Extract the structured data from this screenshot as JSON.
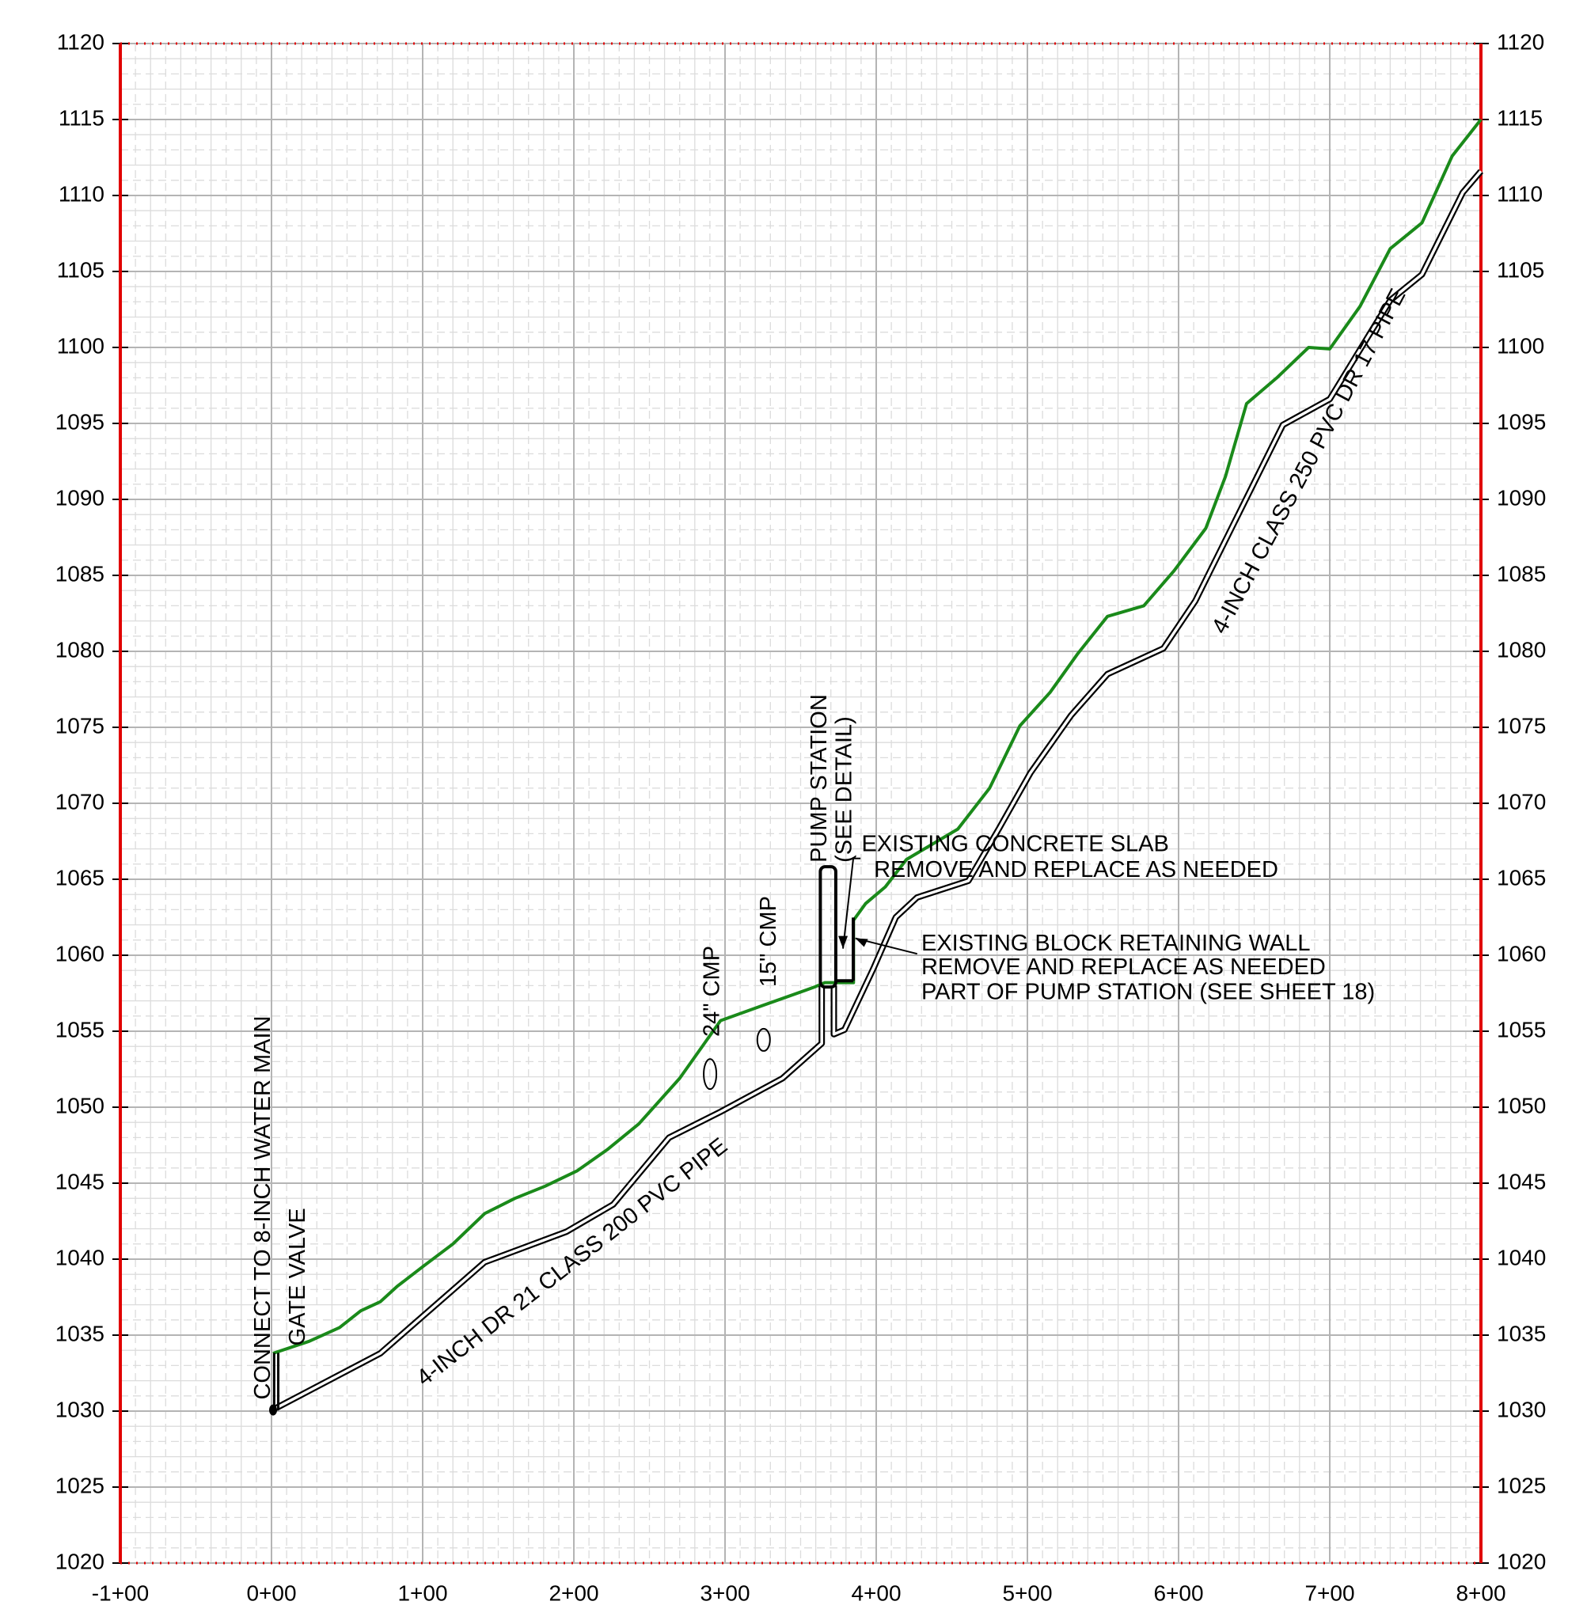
{
  "chart_data": {
    "type": "line",
    "xlim": [
      -100,
      800
    ],
    "xticks": [
      {
        "value": -100,
        "label": "-1+00"
      },
      {
        "value": 0,
        "label": "0+00"
      },
      {
        "value": 100,
        "label": "1+00"
      },
      {
        "value": 200,
        "label": "2+00"
      },
      {
        "value": 300,
        "label": "3+00"
      },
      {
        "value": 400,
        "label": "4+00"
      },
      {
        "value": 500,
        "label": "5+00"
      },
      {
        "value": 600,
        "label": "6+00"
      },
      {
        "value": 700,
        "label": "7+00"
      },
      {
        "value": 800,
        "label": "8+00"
      }
    ],
    "ylim": [
      1020,
      1120
    ],
    "yticks": [
      1020,
      1025,
      1030,
      1035,
      1040,
      1045,
      1050,
      1055,
      1060,
      1065,
      1070,
      1075,
      1080,
      1085,
      1090,
      1095,
      1100,
      1105,
      1110,
      1115,
      1120
    ],
    "grid": true,
    "axis_color": "#e00000",
    "series": [
      {
        "color": "#1a8a1a",
        "x": [
          1,
          25,
          45,
          59,
          72,
          83,
          100,
          120,
          141,
          161,
          181,
          202,
          222,
          243,
          270,
          297,
          325,
          359,
          366,
          385,
          385,
          393,
          406,
          420,
          454,
          475,
          495,
          515,
          533,
          553,
          577,
          597,
          618,
          631,
          645,
          665,
          686,
          700,
          720,
          740,
          761,
          781,
          800
        ],
        "values": [
          1033.8,
          1034.6,
          1035.5,
          1036.6,
          1037.2,
          1038.2,
          1039.5,
          1041,
          1043,
          1044,
          1044.8,
          1045.8,
          1047.2,
          1048.9,
          1051.9,
          1055.7,
          1056.7,
          1057.9,
          1058.2,
          1058.2,
          1062.3,
          1063.4,
          1064.5,
          1066.3,
          1068.3,
          1071,
          1075.1,
          1077.3,
          1079.8,
          1082.3,
          1083,
          1085.3,
          1088.1,
          1091.5,
          1096.3,
          1098,
          1100,
          1099.9,
          1102.7,
          1106.5,
          1108.2,
          1112.6,
          1115
        ]
      },
      {
        "color": "#000000",
        "x": [
          3,
          72,
          141,
          195,
          226,
          263,
          297,
          338,
          364,
          364,
          null,
          372,
          372,
          379,
          398,
          413,
          427,
          461,
          481,
          502,
          529,
          553,
          590,
          611,
          645,
          669,
          700,
          740,
          761,
          788,
          800
        ],
        "values": [
          1030.2,
          1033.8,
          1039.8,
          1041.8,
          1043.6,
          1048,
          1049.7,
          1051.9,
          1054.2,
          1058,
          null,
          1058,
          1054.8,
          1055.1,
          1059.1,
          1062.5,
          1063.8,
          1064.9,
          1068.3,
          1072,
          1075.8,
          1078.5,
          1080.2,
          1083.3,
          1090.1,
          1094.9,
          1096.6,
          1103.1,
          1104.8,
          1110.2,
          1111.6
        ]
      }
    ],
    "annotations": [
      "CONNECT TO 8-INCH WATER MAIN",
      "GATE VALVE",
      "4-INCH DR 21 CLASS 200 PVC PIPE",
      "24\" CMP",
      "15\" CMP",
      "PUMP STATION",
      "(SEE DETAIL)",
      "EXISTING CONCRETE SLAB",
      "REMOVE AND REPLACE AS NEEDED",
      "EXISTING BLOCK RETAINING WALL",
      "REMOVE AND REPLACE AS NEEDED",
      "PART OF PUMP STATION (SEE SHEET 18)",
      "4-INCH CLASS 250 PVC DR 17 PIPE"
    ]
  }
}
